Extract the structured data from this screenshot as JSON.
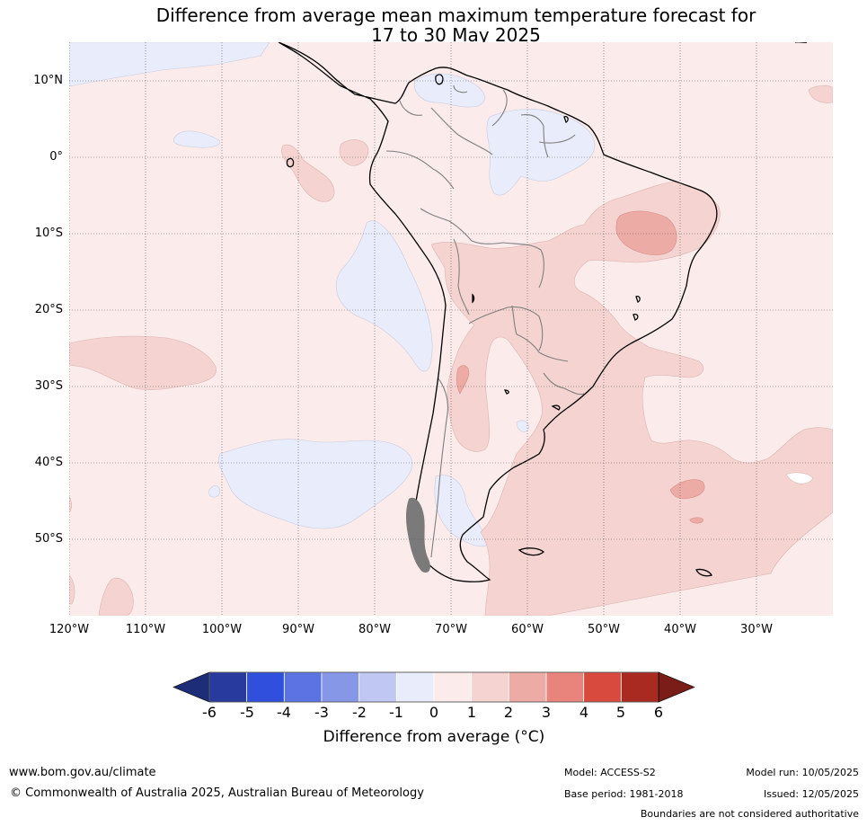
{
  "title": {
    "line1": "Difference from average mean maximum temperature forecast for",
    "line2": "17 to 30 May 2025"
  },
  "map": {
    "background_anomaly_class": "0 to 1",
    "lat_labels": [
      "10°N",
      "0°",
      "10°S",
      "20°S",
      "30°S",
      "40°S",
      "50°S"
    ],
    "lon_labels": [
      "120°W",
      "110°W",
      "100°W",
      "90°W",
      "80°W",
      "70°W",
      "60°W",
      "50°W",
      "40°W",
      "30°W"
    ],
    "region": "South America"
  },
  "colorbar": {
    "ticks": [
      "-6",
      "-5",
      "-4",
      "-3",
      "-2",
      "-1",
      "0",
      "1",
      "2",
      "3",
      "4",
      "5",
      "6"
    ],
    "label": "Difference from average ($^\\circ$C)",
    "label_display": "Difference from average (°C)",
    "colors": [
      "#283a9e",
      "#2f4fdc",
      "#5c74e3",
      "#8797e8",
      "#c0c7f2",
      "#e9ecfa",
      "#fbebea",
      "#f5d3d0",
      "#edaba6",
      "#e8847c",
      "#d94a3e",
      "#a82a20"
    ],
    "under_color": "#1e2d78",
    "over_color": "#7a1c17"
  },
  "footer": {
    "url": "www.bom.gov.au/climate",
    "copyright": "© Commonwealth of Australia 2025, Australian Bureau of Meteorology",
    "model": "Model: ACCESS-S2",
    "base_period": "Base period: 1981-2018",
    "model_run": "Model run: 10/05/2025",
    "issued": "Issued: 12/05/2025",
    "boundaries": "Boundaries are not considered authoritative"
  }
}
